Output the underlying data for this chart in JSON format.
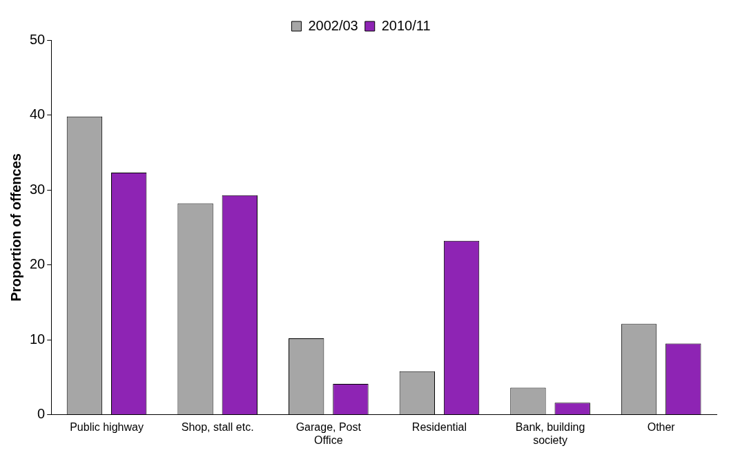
{
  "chart_data": {
    "type": "bar",
    "ylabel": "Proportion of offences",
    "categories": [
      "Public highway",
      "Shop, stall etc.",
      "Garage, Post Office",
      "Residential",
      "Bank, building society",
      "Other"
    ],
    "series": [
      {
        "name": "2002/03",
        "color": "#a6a6a6",
        "values": [
          39.8,
          28.2,
          10.2,
          5.8,
          3.6,
          12.1
        ]
      },
      {
        "name": "2010/11",
        "color": "#8e24b4",
        "values": [
          32.3,
          29.3,
          4.1,
          23.2,
          1.6,
          9.5
        ]
      }
    ],
    "ylim": [
      0,
      50
    ],
    "yticks": [
      0,
      10,
      20,
      30,
      40,
      50
    ],
    "grid": false,
    "legend": "top"
  }
}
